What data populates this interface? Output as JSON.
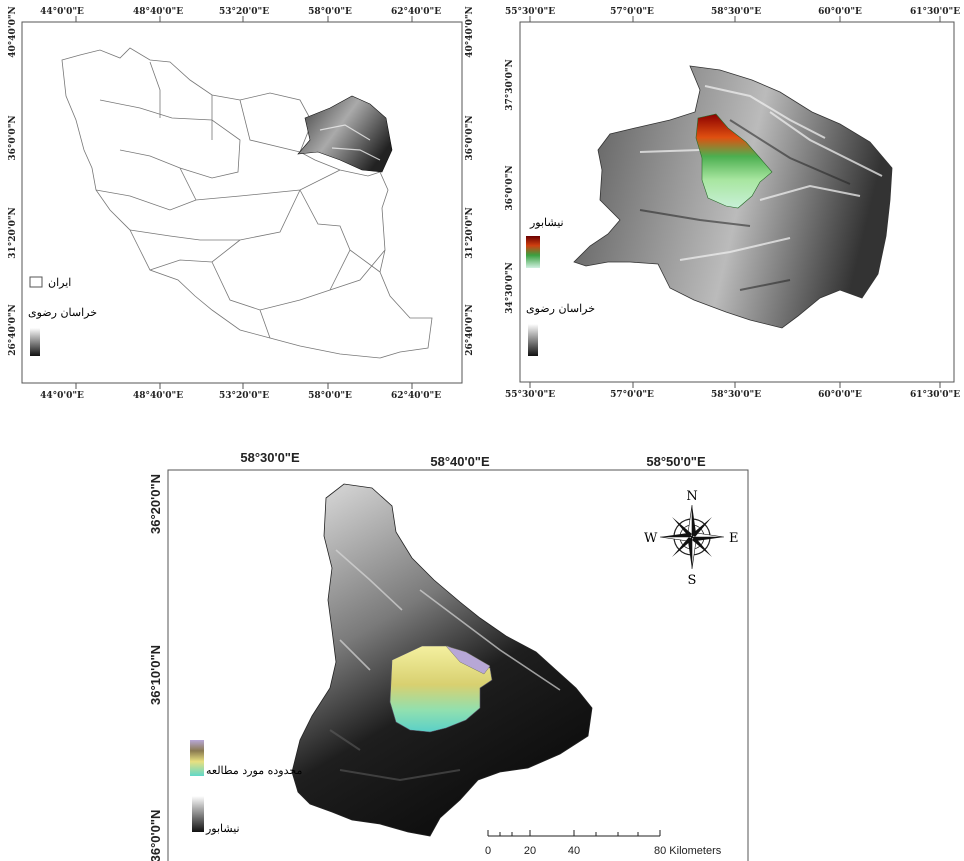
{
  "map1": {
    "top_labels": [
      "44°0'0\"E",
      "48°40'0\"E",
      "53°20'0\"E",
      "58°0'0\"E",
      "62°40'0\"E"
    ],
    "bottom_labels": [
      "44°0'0\"E",
      "48°40'0\"E",
      "53°20'0\"E",
      "58°0'0\"E",
      "62°40'0\"E"
    ],
    "left_labels": [
      "40°40'0\"N",
      "36°0'0\"N",
      "31°20'0\"N",
      "26°40'0\"N"
    ],
    "right_labels": [
      "40°40'0\"N",
      "36°0'0\"N",
      "31°20'0\"N",
      "26°40'0\"N"
    ],
    "legend": {
      "iran": "ایران",
      "khorasan": "خراسان رضوی"
    }
  },
  "map2": {
    "top_labels": [
      "55°30'0\"E",
      "57°0'0\"E",
      "58°30'0\"E",
      "60°0'0\"E",
      "61°30'0\"E"
    ],
    "bottom_labels": [
      "55°30'0\"E",
      "57°0'0\"E",
      "58°30'0\"E",
      "60°0'0\"E",
      "61°30'0\"E"
    ],
    "left_labels": [
      "37°30'0\"N",
      "36°0'0\"N",
      "34°30'0\"N"
    ],
    "legend": {
      "neyshabur": "نیشابور",
      "khorasan": "خراسان رضوی"
    }
  },
  "map3": {
    "top_labels": [
      "58°30'0\"E",
      "58°40'0\"E",
      "58°50'0\"E"
    ],
    "left_labels": [
      "36°20'0\"N",
      "36°10'0\"N",
      "36°0'0\"N"
    ],
    "legend": {
      "study_area": "محدوده مورد مطالعه",
      "neyshabur": "نیشابور"
    },
    "compass": {
      "n": "N",
      "s": "S",
      "e": "E",
      "w": "W"
    },
    "scale": {
      "ticks": [
        "0",
        "20",
        "40",
        "80 Kilometers"
      ]
    }
  }
}
